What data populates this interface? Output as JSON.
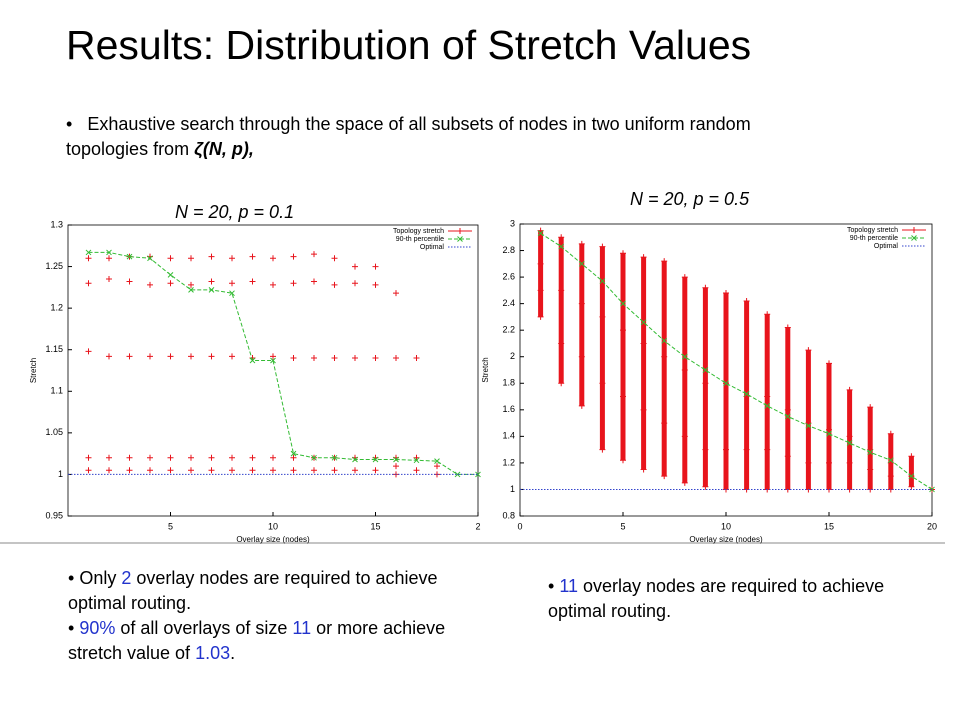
{
  "slide": {
    "title": "Results: Distribution of Stretch Values",
    "intro": [
      {
        "text": "Exhaustive search through the space of all subsets of nodes in two uniform random topologies from "
      },
      {
        "text": "ζ(N, p),",
        "italic": true
      }
    ],
    "notes_left": [
      [
        {
          "text": "Only "
        },
        {
          "text": "2",
          "color": "#2233cc"
        },
        {
          "text": " overlay nodes are required to achieve optimal routing."
        }
      ],
      [
        {
          "text": "90%",
          "color": "#2233cc"
        },
        {
          "text": " of all overlays of size "
        },
        {
          "text": "11",
          "color": "#2233cc"
        },
        {
          "text": " or more achieve stretch value of "
        },
        {
          "text": "1.03",
          "color": "#2233cc"
        },
        {
          "text": "."
        }
      ]
    ],
    "notes_right": [
      [
        {
          "text": "11",
          "color": "#2233cc"
        },
        {
          "text": " overlay nodes are required to achieve optimal routing."
        }
      ]
    ]
  },
  "chart_data": [
    {
      "type": "scatter",
      "title": "N = 20,  p = 0.1",
      "xlabel": "Overlay size (nodes)",
      "ylabel": "Stretch",
      "xlim": [
        0,
        20
      ],
      "ylim": [
        0.95,
        1.3
      ],
      "xticks": [
        5,
        10,
        15,
        {
          "value": 20,
          "label": "2"
        }
      ],
      "yticks": [
        0.95,
        1,
        1.05,
        1.1,
        1.15,
        1.2,
        1.25,
        1.3
      ],
      "legend": "upper right",
      "series": [
        {
          "name": "Topology stretch",
          "color": "#e8141c",
          "marker": "plus",
          "x": [
            1,
            1,
            1,
            1,
            1,
            2,
            2,
            2,
            2,
            2,
            3,
            3,
            3,
            3,
            3,
            4,
            4,
            4,
            4,
            4,
            5,
            5,
            5,
            5,
            5,
            6,
            6,
            6,
            6,
            6,
            7,
            7,
            7,
            7,
            7,
            8,
            8,
            8,
            8,
            8,
            9,
            9,
            9,
            9,
            9,
            10,
            10,
            10,
            10,
            10,
            11,
            11,
            11,
            11,
            11,
            12,
            12,
            12,
            12,
            12,
            13,
            13,
            13,
            13,
            13,
            14,
            14,
            14,
            14,
            14,
            15,
            15,
            15,
            15,
            15,
            16,
            16,
            16,
            16,
            16,
            17,
            17,
            17,
            18,
            18
          ],
          "values": [
            1.26,
            1.23,
            1.148,
            1.02,
            1.005,
            1.26,
            1.235,
            1.142,
            1.02,
            1.005,
            1.262,
            1.232,
            1.142,
            1.02,
            1.005,
            1.262,
            1.228,
            1.142,
            1.02,
            1.005,
            1.26,
            1.23,
            1.142,
            1.02,
            1.005,
            1.26,
            1.228,
            1.142,
            1.02,
            1.005,
            1.262,
            1.232,
            1.142,
            1.02,
            1.005,
            1.26,
            1.23,
            1.142,
            1.02,
            1.005,
            1.262,
            1.232,
            1.14,
            1.02,
            1.005,
            1.26,
            1.228,
            1.142,
            1.02,
            1.005,
            1.262,
            1.23,
            1.14,
            1.02,
            1.005,
            1.265,
            1.232,
            1.14,
            1.02,
            1.005,
            1.26,
            1.228,
            1.14,
            1.02,
            1.005,
            1.25,
            1.23,
            1.14,
            1.02,
            1.005,
            1.25,
            1.228,
            1.14,
            1.02,
            1.005,
            1.218,
            1.14,
            1.02,
            1.01,
            1.0,
            1.14,
            1.02,
            1.005,
            1.01,
            1.0
          ]
        },
        {
          "name": "90-th percentile",
          "color": "#33bb33",
          "marker": "x",
          "style": "dashed",
          "x": [
            1,
            2,
            3,
            4,
            5,
            6,
            7,
            8,
            9,
            10,
            11,
            12,
            13,
            14,
            15,
            16,
            17,
            18,
            19,
            20
          ],
          "values": [
            1.267,
            1.267,
            1.262,
            1.26,
            1.24,
            1.222,
            1.222,
            1.218,
            1.137,
            1.137,
            1.025,
            1.02,
            1.02,
            1.018,
            1.018,
            1.018,
            1.017,
            1.016,
            1,
            1
          ]
        },
        {
          "name": "Optimal",
          "color": "#3344cc",
          "style": "dotted",
          "x": [
            0,
            20
          ],
          "values": [
            1,
            1
          ]
        }
      ]
    },
    {
      "type": "scatter",
      "title": "N = 20,  p = 0.5",
      "xlabel": "Overlay size (nodes)",
      "ylabel": "Stretch",
      "xlim": [
        0,
        20
      ],
      "ylim": [
        0.8,
        3
      ],
      "xticks": [
        0,
        5,
        10,
        15,
        20
      ],
      "yticks": [
        0.8,
        1,
        1.2,
        1.4,
        1.6,
        1.8,
        2,
        2.2,
        2.4,
        2.6,
        2.8,
        3
      ],
      "legend": "upper right",
      "series": [
        {
          "name": "Topology stretch",
          "color": "#e8141c",
          "marker": "plus",
          "columns": true,
          "x": [
            1,
            1,
            1,
            1,
            2,
            2,
            2,
            2,
            3,
            3,
            3,
            3,
            4,
            4,
            4,
            4,
            5,
            5,
            5,
            5,
            6,
            6,
            6,
            6,
            7,
            7,
            7,
            7,
            8,
            8,
            8,
            8,
            9,
            9,
            9,
            9,
            10,
            10,
            10,
            10,
            11,
            11,
            11,
            11,
            12,
            12,
            12,
            12,
            13,
            13,
            13,
            13,
            14,
            14,
            14,
            14,
            15,
            15,
            15,
            15,
            16,
            16,
            16,
            16,
            17,
            17,
            17,
            17,
            18,
            18,
            18,
            18,
            19,
            19,
            19,
            20
          ],
          "values": [
            2.95,
            2.7,
            2.5,
            2.3,
            2.9,
            2.5,
            2.1,
            1.8,
            2.85,
            2.4,
            2.0,
            1.63,
            2.83,
            2.3,
            1.8,
            1.3,
            2.78,
            2.2,
            1.7,
            1.22,
            2.75,
            2.1,
            1.6,
            1.15,
            2.72,
            2.0,
            1.5,
            1.1,
            2.6,
            1.9,
            1.4,
            1.05,
            2.52,
            1.8,
            1.3,
            1.02,
            2.48,
            1.8,
            1.3,
            1.0,
            2.42,
            1.7,
            1.3,
            1.0,
            2.32,
            1.7,
            1.3,
            1.0,
            2.22,
            1.6,
            1.25,
            1.0,
            2.05,
            1.5,
            1.2,
            1.0,
            1.95,
            1.45,
            1.2,
            1.0,
            1.75,
            1.4,
            1.2,
            1.0,
            1.62,
            1.3,
            1.15,
            1.0,
            1.42,
            1.2,
            1.1,
            1.0,
            1.25,
            1.1,
            1.02,
            1.0
          ]
        },
        {
          "name": "90-th percentile",
          "color": "#33bb33",
          "marker": "x",
          "style": "dashed",
          "x": [
            1,
            2,
            3,
            4,
            5,
            6,
            7,
            8,
            9,
            10,
            11,
            12,
            13,
            14,
            15,
            16,
            17,
            18,
            19,
            20
          ],
          "values": [
            2.93,
            2.83,
            2.7,
            2.57,
            2.4,
            2.26,
            2.12,
            2.0,
            1.9,
            1.8,
            1.72,
            1.63,
            1.55,
            1.48,
            1.42,
            1.35,
            1.28,
            1.22,
            1.1,
            1.0
          ]
        },
        {
          "name": "Optimal",
          "color": "#3344cc",
          "style": "dotted",
          "x": [
            0,
            20
          ],
          "values": [
            1,
            1
          ]
        }
      ]
    }
  ]
}
